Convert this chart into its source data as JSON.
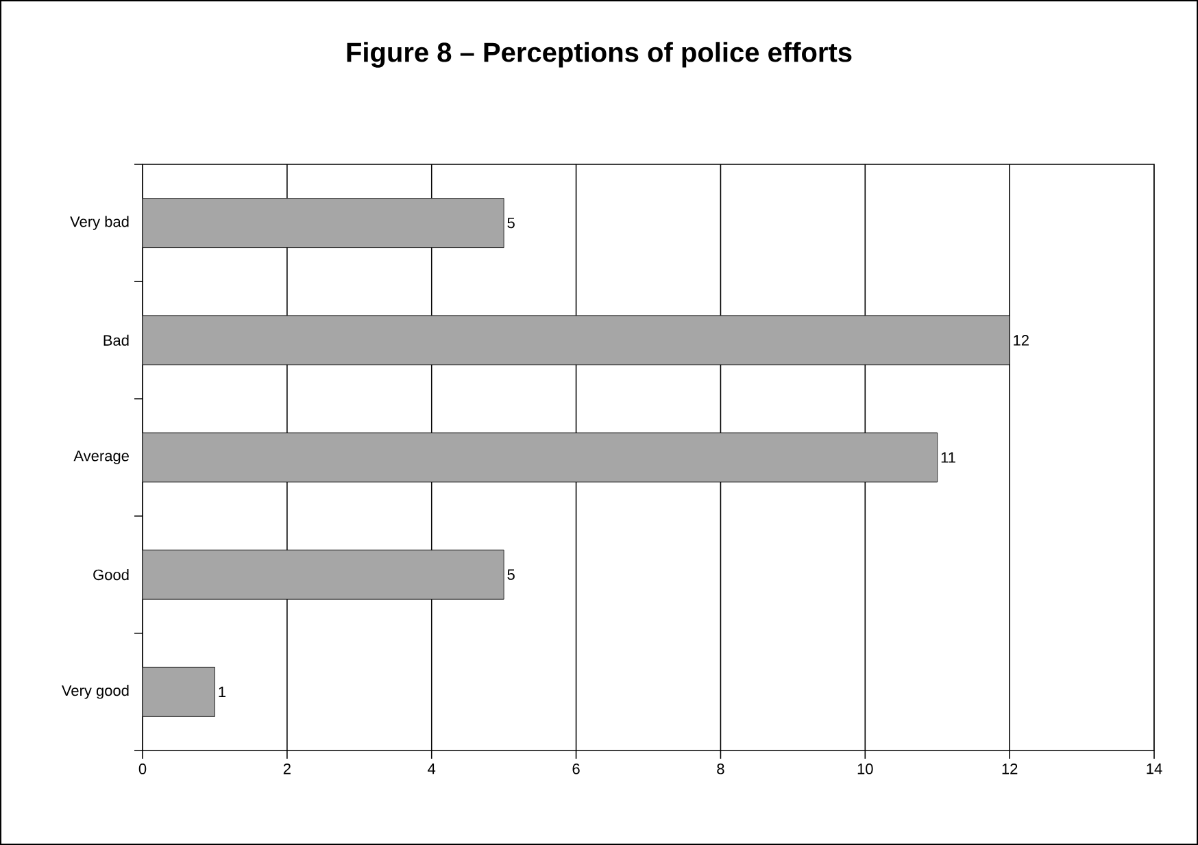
{
  "chart_data": {
    "type": "bar",
    "orientation": "horizontal",
    "title": "Figure 8 – Perceptions of police efforts",
    "categories": [
      "Very bad",
      "Bad",
      "Average",
      "Good",
      "Very good"
    ],
    "values": [
      5,
      12,
      11,
      5,
      1
    ],
    "color": "#a6a6a6",
    "xlim": [
      0,
      14
    ],
    "xticks": [
      0,
      2,
      4,
      6,
      8,
      10,
      12,
      14
    ],
    "grid": "x",
    "data_labels": true
  }
}
